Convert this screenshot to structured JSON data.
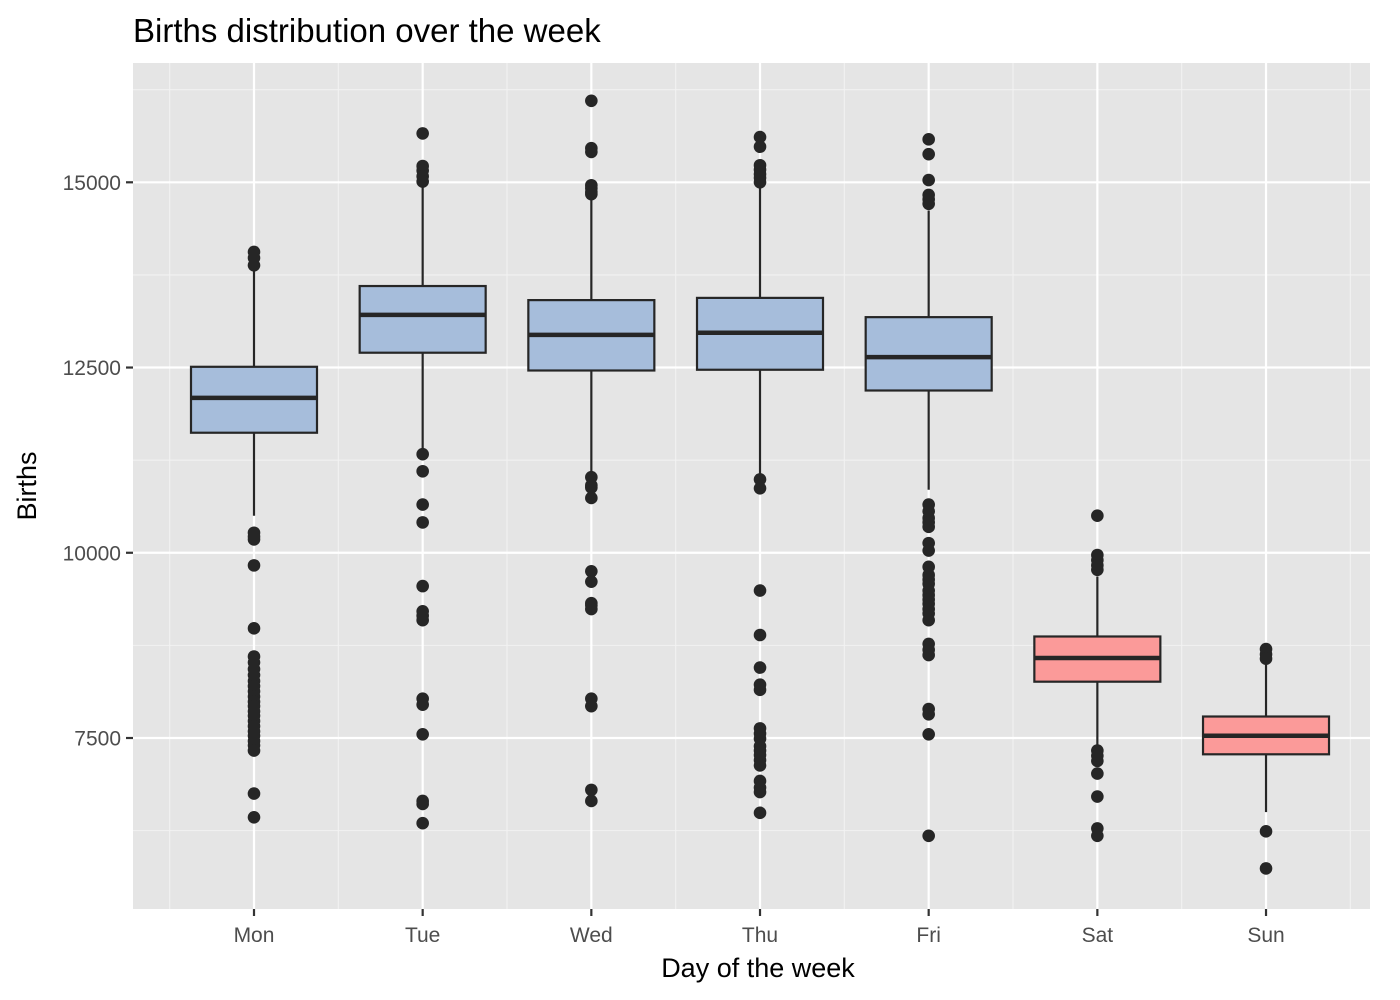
{
  "chart_data": {
    "type": "boxplot",
    "title": "Births distribution over the week",
    "xlabel": "Day of the week",
    "ylabel": "Births",
    "ylim": [
      5600,
      16400
    ],
    "yticks": [
      7500,
      10000,
      12500,
      15000
    ],
    "ytick_labels": [
      "7500",
      "10000",
      "12500",
      "15000"
    ],
    "grid": true,
    "legend": "none",
    "categories": [
      "Mon",
      "Tue",
      "Wed",
      "Thu",
      "Fri",
      "Sat",
      "Sun"
    ],
    "fill_colors": [
      "#a6bddb",
      "#a6bddb",
      "#a6bddb",
      "#a6bddb",
      "#a6bddb",
      "#fb9a99",
      "#fb9a99"
    ],
    "boxes": [
      {
        "category": "Mon",
        "lower_whisker": 10500,
        "q1": 11620,
        "median": 12090,
        "q3": 12510,
        "upper_whisker": 13820,
        "outliers": [
          14060,
          13980,
          13880,
          10270,
          10220,
          10180,
          9830,
          8980,
          8600,
          8520,
          8430,
          8350,
          8270,
          8200,
          8130,
          8060,
          7990,
          7930,
          7860,
          7800,
          7730,
          7660,
          7590,
          7530,
          7460,
          7400,
          7330,
          6750,
          6430
        ]
      },
      {
        "category": "Tue",
        "lower_whisker": 11360,
        "q1": 12700,
        "median": 13210,
        "q3": 13600,
        "upper_whisker": 14950,
        "outliers": [
          15660,
          15220,
          15160,
          15080,
          15010,
          11330,
          11100,
          10650,
          10410,
          9550,
          9210,
          9150,
          9090,
          8030,
          7950,
          7550,
          6650,
          6610,
          6350
        ]
      },
      {
        "category": "Wed",
        "lower_whisker": 11050,
        "q1": 12460,
        "median": 12940,
        "q3": 13410,
        "upper_whisker": 14810,
        "outliers": [
          16100,
          15460,
          15410,
          14960,
          14920,
          14870,
          14840,
          11020,
          10910,
          10880,
          10740,
          9750,
          9610,
          9320,
          9290,
          9240,
          8030,
          7930,
          6800,
          6650
        ]
      },
      {
        "category": "Thu",
        "lower_whisker": 11000,
        "q1": 12470,
        "median": 12970,
        "q3": 13440,
        "upper_whisker": 14950,
        "outliers": [
          15610,
          15480,
          15230,
          15170,
          15110,
          15060,
          15000,
          10990,
          10870,
          9490,
          8890,
          8450,
          8220,
          8150,
          7630,
          7560,
          7490,
          7390,
          7330,
          7270,
          7200,
          7130,
          6920,
          6830,
          6770,
          6490
        ]
      },
      {
        "category": "Fri",
        "lower_whisker": 10850,
        "q1": 12190,
        "median": 12640,
        "q3": 13180,
        "upper_whisker": 14620,
        "outliers": [
          15580,
          15380,
          15030,
          14830,
          14770,
          14710,
          10650,
          10560,
          10470,
          10410,
          10350,
          10130,
          10030,
          9810,
          9700,
          9640,
          9580,
          9490,
          9430,
          9370,
          9310,
          9240,
          9180,
          9090,
          8770,
          8690,
          8620,
          7890,
          7820,
          7550,
          6180
        ]
      },
      {
        "category": "Sat",
        "lower_whisker": 7380,
        "q1": 8260,
        "median": 8580,
        "q3": 8870,
        "upper_whisker": 9680,
        "outliers": [
          10500,
          9970,
          9900,
          9830,
          9770,
          7330,
          7260,
          7190,
          7020,
          6710,
          6280,
          6180
        ]
      },
      {
        "category": "Sun",
        "lower_whisker": 6500,
        "q1": 7280,
        "median": 7530,
        "q3": 7790,
        "upper_whisker": 8560,
        "outliers": [
          8700,
          8630,
          8570,
          6240,
          5740
        ]
      }
    ]
  }
}
